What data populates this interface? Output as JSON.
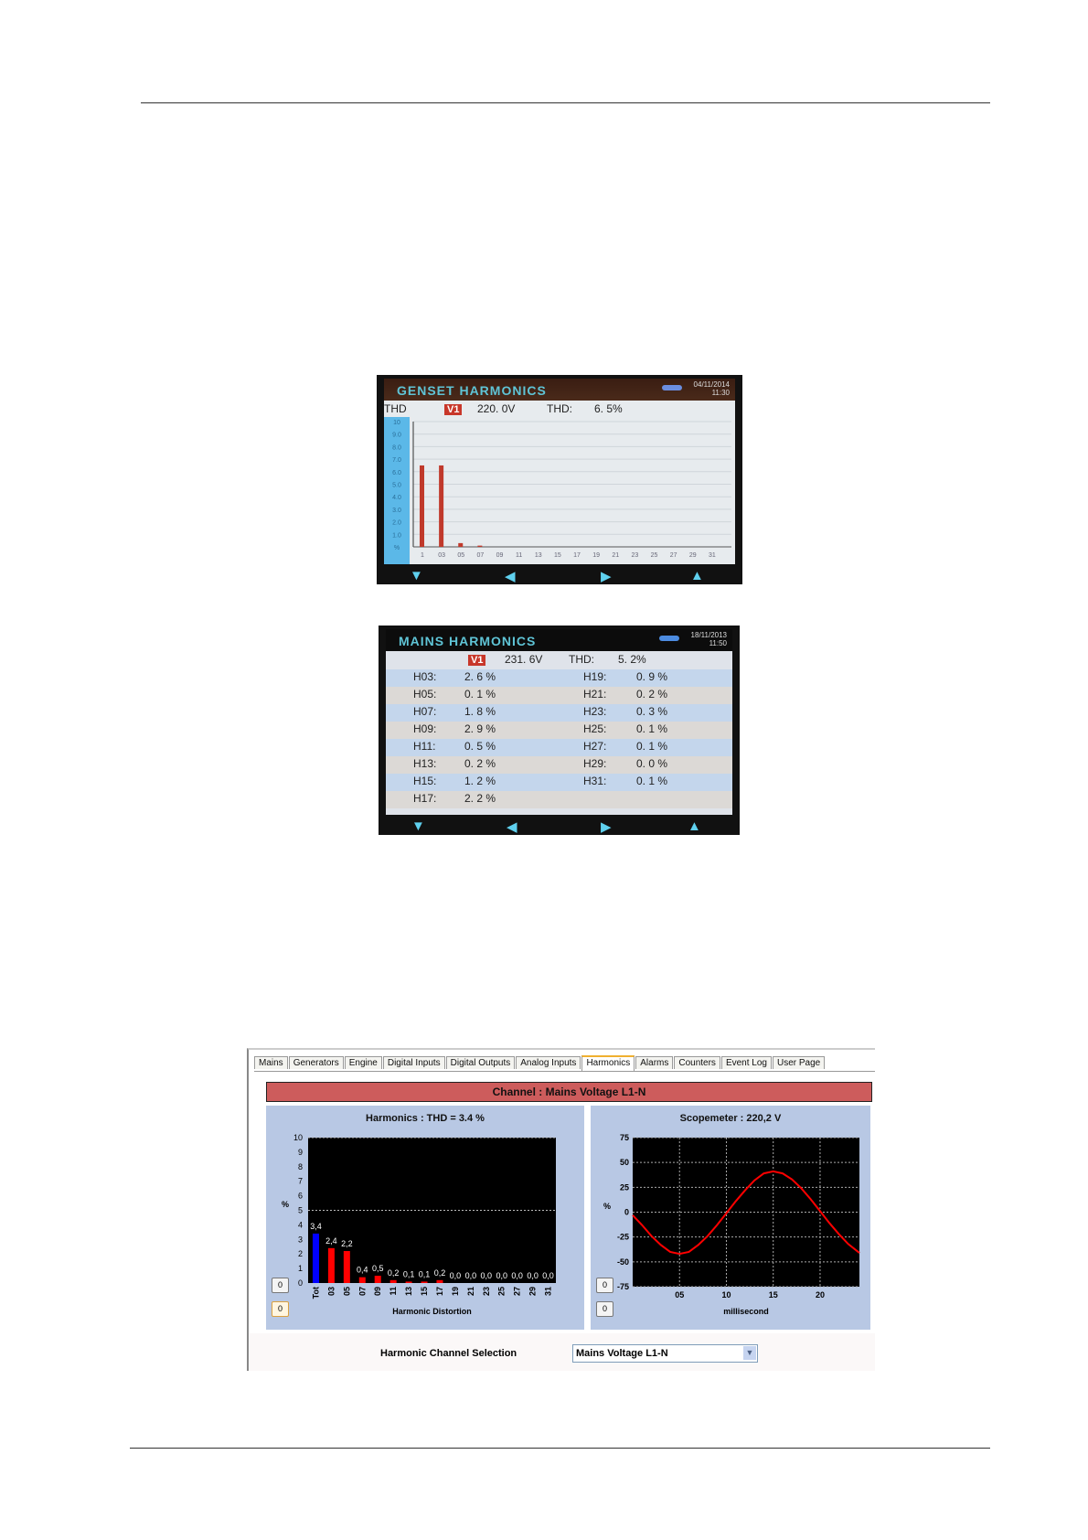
{
  "genset": {
    "title": "GENSET HARMONICS",
    "date": "04/11/2014",
    "time": "11:30",
    "thd_label_left": "THD",
    "channel": "V1",
    "voltage": "220. 0V",
    "thd_label": "THD:",
    "thd_value": "6. 5%",
    "chart_data": {
      "type": "bar",
      "y_tick_labels": [
        "10",
        "9.0",
        "8.0",
        "7.0",
        "6.0",
        "5.0",
        "4.0",
        "3.0",
        "2.0",
        "1.0",
        "%"
      ],
      "categories": [
        "1",
        "03",
        "05",
        "07",
        "09",
        "11",
        "13",
        "15",
        "17",
        "19",
        "21",
        "23",
        "25",
        "27",
        "29",
        "31"
      ],
      "values": [
        6.5,
        6.5,
        0.3,
        0.1,
        0,
        0,
        0,
        0,
        0,
        0,
        0,
        0,
        0,
        0,
        0,
        0
      ],
      "ylim": [
        0,
        10
      ],
      "bar_color": "#c0392b"
    }
  },
  "mains": {
    "title": "MAINS HARMONICS",
    "date": "18/11/2013",
    "time": "11:50",
    "channel": "V1",
    "voltage": "231. 6V",
    "thd_label": "THD:",
    "thd_value": "5. 2%",
    "left": [
      {
        "h": "H03:",
        "v": "2. 6 %"
      },
      {
        "h": "H05:",
        "v": "0. 1 %"
      },
      {
        "h": "H07:",
        "v": "1. 8 %"
      },
      {
        "h": "H09:",
        "v": "2. 9 %"
      },
      {
        "h": "H11:",
        "v": "0. 5 %"
      },
      {
        "h": "H13:",
        "v": "0. 2 %"
      },
      {
        "h": "H15:",
        "v": "1. 2 %"
      },
      {
        "h": "H17:",
        "v": "2. 2 %"
      }
    ],
    "right": [
      {
        "h": "H19:",
        "v": "0. 9 %"
      },
      {
        "h": "H21:",
        "v": "0. 2 %"
      },
      {
        "h": "H23:",
        "v": "0. 3 %"
      },
      {
        "h": "H25:",
        "v": "0. 1 %"
      },
      {
        "h": "H27:",
        "v": "0. 1 %"
      },
      {
        "h": "H29:",
        "v": "0. 0 %"
      },
      {
        "h": "H31:",
        "v": "0. 1 %"
      }
    ]
  },
  "app": {
    "tabs": [
      "Mains",
      "Generators",
      "Engine",
      "Digital Inputs",
      "Digital Outputs",
      "Analog Inputs",
      "Harmonics",
      "Alarms",
      "Counters",
      "Event Log",
      "User Page"
    ],
    "active_tab": "Harmonics",
    "channel_banner": "Channel : Mains Voltage L1-N",
    "selection_label": "Harmonic Channel Selection",
    "selection_value": "Mains Voltage L1-N",
    "btn_label": "0"
  },
  "chart_data": [
    {
      "type": "bar",
      "title": "Harmonics : THD = 3.4 %",
      "xlabel": "Harmonic Distortion",
      "ylabel": "%",
      "ylim": [
        0,
        10
      ],
      "y_ticks": [
        0,
        1,
        2,
        3,
        4,
        5,
        6,
        7,
        8,
        9,
        10
      ],
      "categories": [
        "Tot",
        "03",
        "05",
        "07",
        "09",
        "11",
        "13",
        "15",
        "17",
        "19",
        "21",
        "23",
        "25",
        "27",
        "29",
        "31"
      ],
      "values": [
        3.4,
        2.4,
        2.2,
        0.4,
        0.5,
        0.2,
        0.1,
        0.1,
        0.2,
        0.0,
        0.0,
        0.0,
        0.0,
        0.0,
        0.0,
        0.0
      ],
      "data_labels": [
        "3,4",
        "2,4",
        "2,2",
        "0,4",
        "0,5",
        "0,2",
        "0,1",
        "0,1",
        "0,2",
        "0,0",
        "0,0",
        "0,0",
        "0,0",
        "0,0",
        "0,0",
        "0,0"
      ],
      "colors": {
        "total": "#0000ff",
        "harmonic": "#ff0000",
        "background": "#000000"
      },
      "reference_lines": [
        5,
        10
      ]
    },
    {
      "type": "line",
      "title": "Scopemeter : 220,2 V",
      "xlabel": "millisecond",
      "ylabel": "%",
      "ylim": [
        -75,
        75
      ],
      "xlim": [
        0,
        24.2
      ],
      "y_ticks": [
        75,
        50,
        25,
        0,
        -25,
        -50,
        -75
      ],
      "x_ticks": [
        5,
        10,
        15,
        20
      ],
      "x_tick_labels": [
        "05",
        "10",
        "15",
        "20"
      ],
      "series": [
        {
          "x": [
            0,
            1,
            2,
            3,
            4,
            5,
            6,
            7,
            8,
            9,
            10,
            11,
            12,
            13,
            14,
            15,
            16,
            17,
            18,
            19,
            20,
            21,
            22,
            23,
            24.2
          ],
          "y": [
            -3,
            -13,
            -24,
            -33,
            -40,
            -42,
            -40,
            -33,
            -24,
            -13,
            -1,
            11,
            22,
            32,
            39,
            41,
            39,
            33,
            24,
            13,
            1,
            -11,
            -22,
            -32,
            -41
          ]
        }
      ],
      "line_color": "#ff0000",
      "grid": true
    }
  ]
}
